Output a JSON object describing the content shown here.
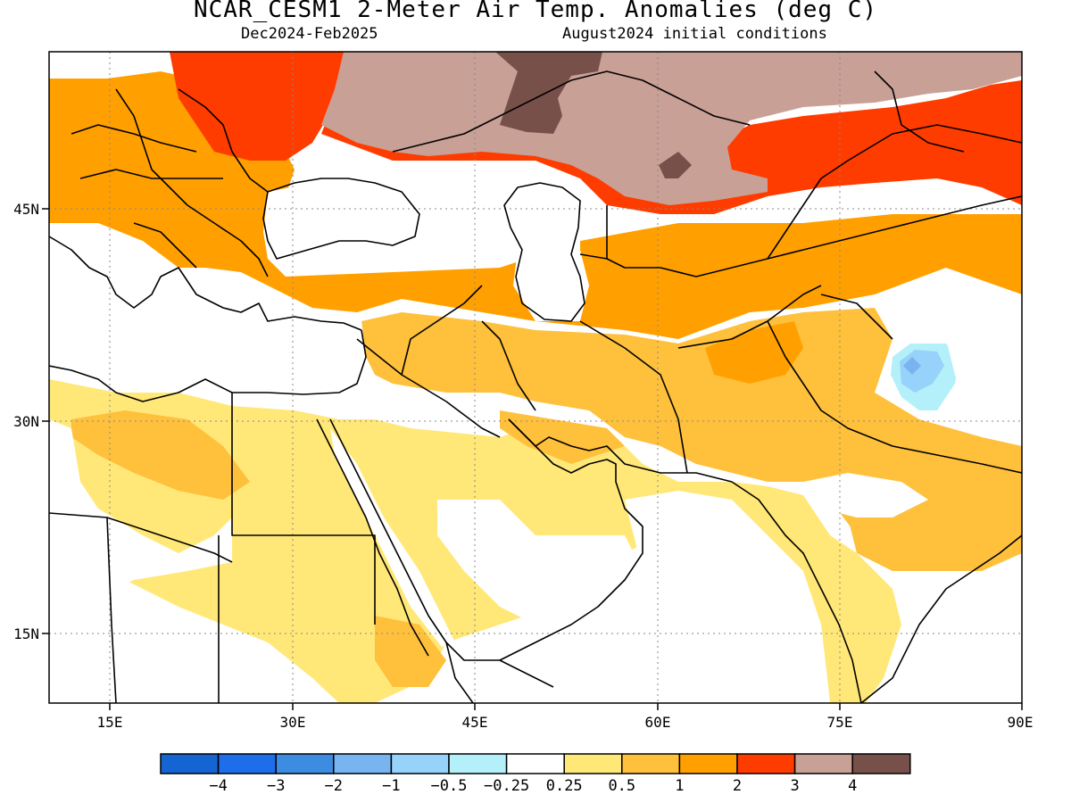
{
  "title": "NCAR_CESM1 2-Meter Air Temp. Anomalies (deg C)",
  "subtitle_left": "Dec2024-Feb2025",
  "subtitle_right": "August2024 initial conditions",
  "lon_ticks": [
    "15E",
    "30E",
    "45E",
    "60E",
    "75E",
    "90E"
  ],
  "lat_ticks": [
    "45N",
    "30N",
    "15N"
  ],
  "colorbar": {
    "labels": [
      "-4",
      "-3",
      "-2",
      "-1",
      "-0.5",
      "-0.25",
      "0.25",
      "0.5",
      "1",
      "2",
      "3",
      "4"
    ],
    "colors": [
      "#1464d2",
      "#1e6eeb",
      "#3c8ce1",
      "#78b4f0",
      "#96d2fa",
      "#b4f0fa",
      "#ffffff",
      "#ffe878",
      "#ffc03c",
      "#ffa000",
      "#ff3c00",
      "#c8a096",
      "#78504a"
    ]
  },
  "map_layers": {
    "land_outline": "coastlines and country borders",
    "grid": "dotted lat/lon lines"
  }
}
